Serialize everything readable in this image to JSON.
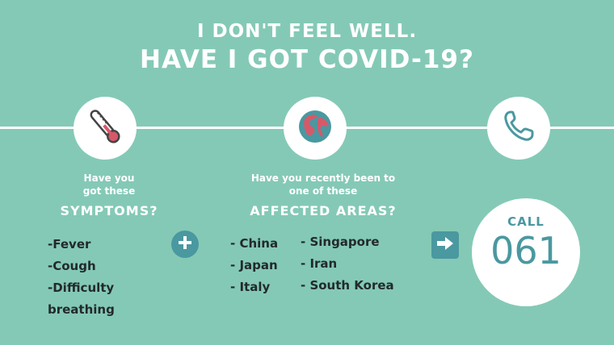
{
  "title": {
    "line1": "I DON'T FEEL WELL.",
    "line2": "HAVE I GOT COVID-19?"
  },
  "symptoms": {
    "intro_line1": "Have you",
    "intro_line2": "got these",
    "heading": "SYMPTOMS?",
    "items": [
      "-Fever",
      "-Cough",
      "-Difficulty",
      "breathing"
    ]
  },
  "areas": {
    "intro_line1": "Have you recently been to",
    "intro_line2": "one of these",
    "heading": "AFFECTED AREAS?",
    "col1": [
      "- China",
      "- Japan",
      "- Italy"
    ],
    "col2": [
      "- Singapore",
      "- Iran",
      "- South Korea"
    ]
  },
  "call": {
    "label": "CALL",
    "number": "061"
  },
  "icons": {
    "thermometer": "thermometer-icon",
    "globe": "globe-icon",
    "phone": "phone-icon",
    "plus": "plus-icon",
    "arrow": "arrow-right-icon"
  },
  "colors": {
    "background": "#84c9b6",
    "accent": "#4a98a0",
    "thermometer_red": "#d6596a"
  }
}
